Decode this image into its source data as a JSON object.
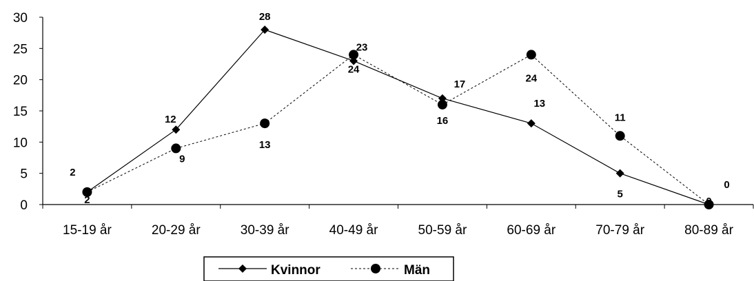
{
  "chart_data": {
    "type": "line",
    "categories": [
      "15-19 år",
      "20-29 år",
      "30-39 år",
      "40-49 år",
      "50-59 år",
      "60-69 år",
      "70-79 år",
      "80-89 år"
    ],
    "series": [
      {
        "name": "Kvinnor",
        "values": [
          2,
          12,
          28,
          23,
          17,
          13,
          5,
          0
        ],
        "marker": "diamond",
        "line": "solid"
      },
      {
        "name": "Män",
        "values": [
          2,
          9,
          13,
          24,
          16,
          24,
          11,
          0
        ],
        "marker": "circle",
        "line": "dashed"
      }
    ],
    "title": "",
    "xlabel": "",
    "ylabel": "",
    "ylim": [
      0,
      30
    ],
    "yticks": [
      0,
      5,
      10,
      15,
      20,
      25,
      30
    ],
    "grid": false,
    "legend": "bottom",
    "colors": {
      "line": "#000000",
      "background": "#ffffff"
    }
  }
}
